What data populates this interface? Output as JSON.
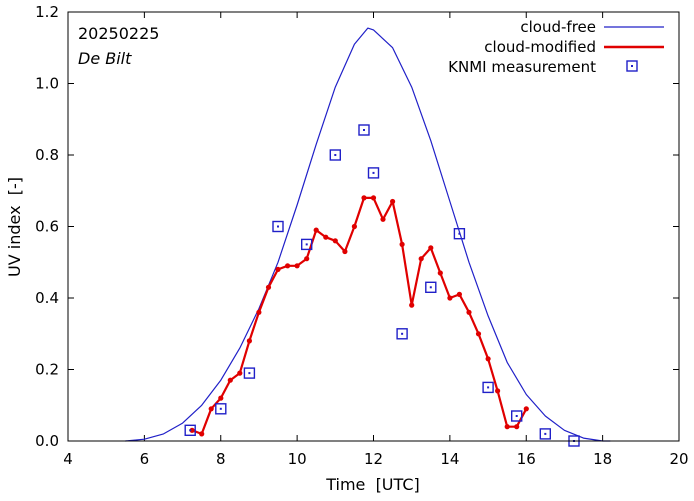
{
  "chart_data": {
    "type": "line",
    "title": "",
    "annotations": [
      "20250225",
      "De Bilt"
    ],
    "xlabel": "Time  [UTC]",
    "ylabel": "UV index  [-]",
    "xlim": [
      4,
      20
    ],
    "ylim": [
      0,
      1.2
    ],
    "xticks": [
      4,
      6,
      8,
      10,
      12,
      14,
      16,
      18,
      20
    ],
    "xtick_labels": [
      "4",
      "6",
      "8",
      "10",
      "12",
      "14",
      "16",
      "18",
      "20"
    ],
    "yticks": [
      0,
      0.2,
      0.4,
      0.6,
      0.8,
      1.0,
      1.2
    ],
    "ytick_labels": [
      "0.0",
      "0.2",
      "0.4",
      "0.6",
      "0.8",
      "1.0",
      "1.2"
    ],
    "legend_position": "top-right",
    "series": [
      {
        "name": "cloud-free",
        "kind": "curve",
        "color": "#2020c8",
        "x": [
          5.5,
          6.0,
          6.5,
          7.0,
          7.5,
          8.0,
          8.5,
          9.0,
          9.5,
          10.0,
          10.5,
          11.0,
          11.5,
          11.85,
          12.0,
          12.5,
          13.0,
          13.5,
          14.0,
          14.5,
          15.0,
          15.5,
          16.0,
          16.5,
          17.0,
          17.5,
          18.0,
          18.2
        ],
        "y": [
          0.0,
          0.005,
          0.02,
          0.05,
          0.1,
          0.17,
          0.26,
          0.37,
          0.5,
          0.66,
          0.83,
          0.99,
          1.11,
          1.155,
          1.15,
          1.1,
          0.99,
          0.84,
          0.67,
          0.5,
          0.35,
          0.22,
          0.13,
          0.07,
          0.03,
          0.008,
          0.0,
          0.0
        ]
      },
      {
        "name": "cloud-modified",
        "kind": "line-points",
        "color": "#e00000",
        "x": [
          7.25,
          7.5,
          7.75,
          8.0,
          8.25,
          8.5,
          8.75,
          9.0,
          9.25,
          9.5,
          9.75,
          10.0,
          10.25,
          10.5,
          10.75,
          11.0,
          11.25,
          11.5,
          11.75,
          12.0,
          12.25,
          12.5,
          12.75,
          13.0,
          13.25,
          13.5,
          13.75,
          14.0,
          14.25,
          14.5,
          14.75,
          15.0,
          15.25,
          15.5,
          15.75,
          16.0
        ],
        "y": [
          0.03,
          0.02,
          0.09,
          0.12,
          0.17,
          0.19,
          0.28,
          0.36,
          0.43,
          0.48,
          0.49,
          0.49,
          0.51,
          0.59,
          0.57,
          0.56,
          0.53,
          0.6,
          0.68,
          0.68,
          0.62,
          0.67,
          0.55,
          0.38,
          0.51,
          0.54,
          0.47,
          0.4,
          0.41,
          0.36,
          0.3,
          0.23,
          0.14,
          0.04,
          0.04,
          0.09
        ]
      },
      {
        "name": "KNMI measurement",
        "kind": "markers",
        "color": "#2020c8",
        "x": [
          7.2,
          8.0,
          8.75,
          9.5,
          10.25,
          11.0,
          11.75,
          12.0,
          12.75,
          13.5,
          14.25,
          15.0,
          15.75,
          16.5,
          17.25
        ],
        "y": [
          0.03,
          0.09,
          0.19,
          0.6,
          0.55,
          0.8,
          0.87,
          0.75,
          0.3,
          0.43,
          0.58,
          0.15,
          0.07,
          0.02,
          0.0
        ]
      }
    ]
  }
}
